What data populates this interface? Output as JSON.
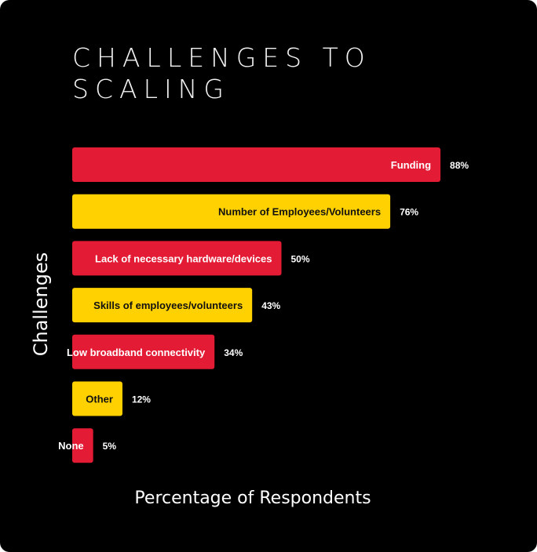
{
  "chart_data": {
    "type": "bar",
    "orientation": "horizontal",
    "title_lines": [
      "CHALLENGES TO",
      "SCALING"
    ],
    "xlabel": "Percentage of Respondents",
    "ylabel": "Challenges",
    "categories": [
      "Funding",
      "Number of Employees/Volunteers",
      "Lack of necessary hardware/devices",
      "Skills of employees/volunteers",
      "Low broadband connectivity",
      "Other",
      "None"
    ],
    "values": [
      88,
      76,
      50,
      43,
      34,
      12,
      5
    ],
    "value_labels": [
      "88%",
      "76%",
      "50%",
      "43%",
      "34%",
      "12%",
      "5%"
    ],
    "xlim": [
      0,
      100
    ],
    "grid": false,
    "legend": "none",
    "colors": {
      "background": "#000000",
      "bar_red": "#e31b34",
      "bar_yellow": "#ffd100",
      "label_on_red": "#ffffff",
      "label_on_yellow": "#111111",
      "text": "#ffffff"
    },
    "bar_color_pattern": [
      "red",
      "yellow",
      "red",
      "yellow",
      "red",
      "yellow",
      "red"
    ]
  }
}
